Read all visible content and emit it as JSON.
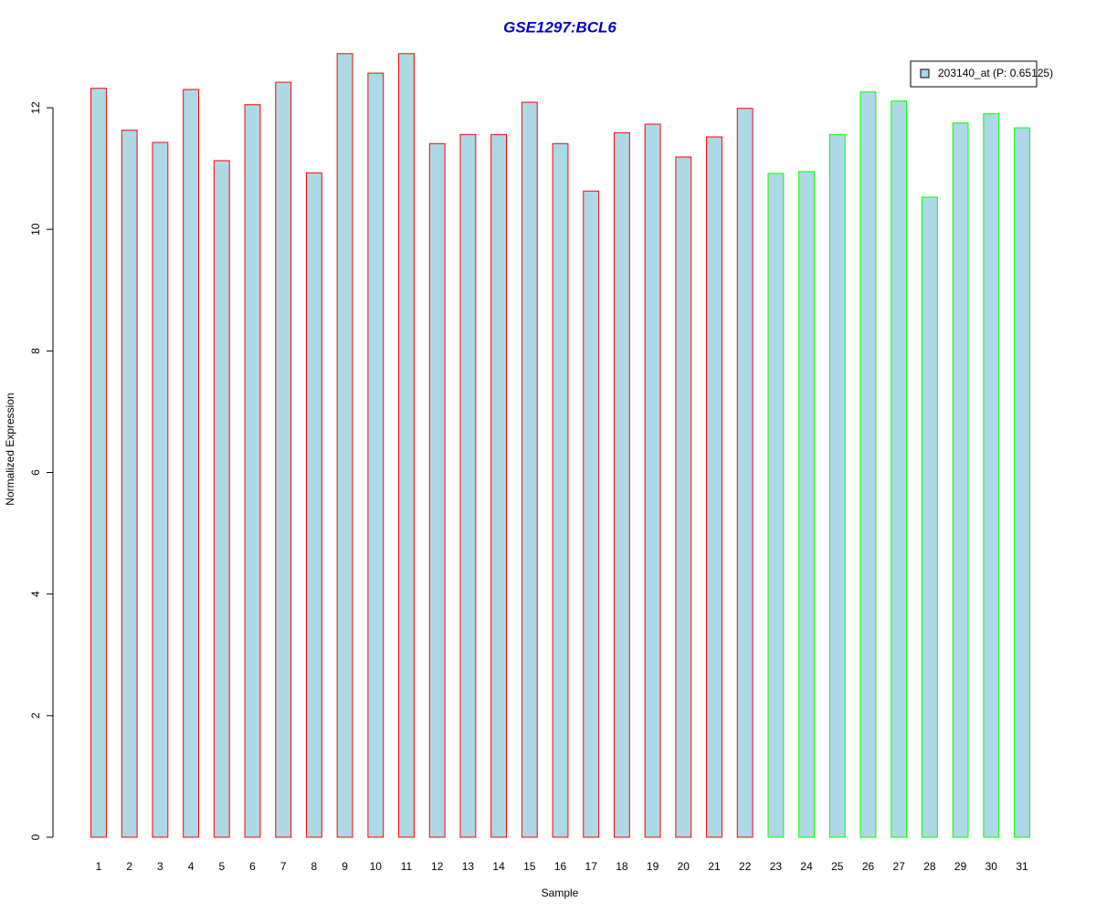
{
  "chart_data": {
    "type": "bar",
    "title": "GSE1297:BCL6",
    "x_label": "Sample",
    "y_label": "Normalized Expression",
    "categories": [
      "1",
      "2",
      "3",
      "4",
      "5",
      "6",
      "7",
      "8",
      "9",
      "10",
      "11",
      "12",
      "13",
      "14",
      "15",
      "16",
      "17",
      "18",
      "19",
      "20",
      "21",
      "22",
      "23",
      "24",
      "25",
      "26",
      "27",
      "28",
      "29",
      "30",
      "31"
    ],
    "series": [
      {
        "name": "203140_at (P: 0.65125)",
        "color": "#ADD8E6",
        "values": [
          12.32,
          11.63,
          11.43,
          12.3,
          11.13,
          12.05,
          12.42,
          10.93,
          12.89,
          12.57,
          12.89,
          11.41,
          11.56,
          11.56,
          12.09,
          11.41,
          10.63,
          11.59,
          11.73,
          11.19,
          11.52,
          11.99,
          10.92,
          10.95,
          11.56,
          12.26,
          12.11,
          10.53,
          11.75,
          11.9,
          11.67
        ],
        "border_colors": [
          "#FF0000",
          "#FF0000",
          "#FF0000",
          "#FF0000",
          "#FF0000",
          "#FF0000",
          "#FF0000",
          "#FF0000",
          "#FF0000",
          "#FF0000",
          "#FF0000",
          "#FF0000",
          "#FF0000",
          "#FF0000",
          "#FF0000",
          "#FF0000",
          "#FF0000",
          "#FF0000",
          "#FF0000",
          "#FF0000",
          "#FF0000",
          "#FF0000",
          "#00FF00",
          "#00FF00",
          "#00FF00",
          "#00FF00",
          "#00FF00",
          "#00FF00",
          "#00FF00",
          "#00FF00",
          "#00FF00"
        ]
      }
    ],
    "ylim": [
      0,
      13
    ],
    "yticks": [
      0,
      2,
      4,
      6,
      8,
      10,
      12
    ],
    "grid": false,
    "legend_position": "topright",
    "title_color": "#0000CD"
  }
}
